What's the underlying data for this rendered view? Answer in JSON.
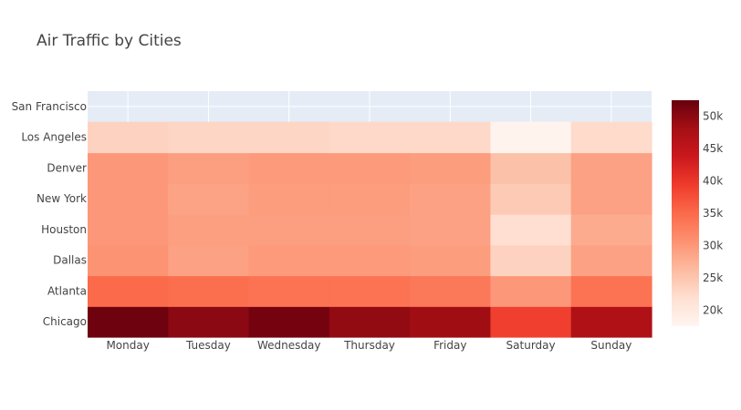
{
  "chart_data": {
    "type": "heatmap",
    "title": "Air Traffic by Cities",
    "x": [
      "Monday",
      "Tuesday",
      "Wednesday",
      "Thursday",
      "Friday",
      "Saturday",
      "Sunday"
    ],
    "y": [
      "Chicago",
      "Atlanta",
      "Dallas",
      "Houston",
      "New York",
      "Denver",
      "Los Angeles",
      "San Francisco"
    ],
    "z": [
      [
        52000,
        50000,
        51500,
        49500,
        48500,
        39000,
        47000
      ],
      [
        35000,
        34500,
        34000,
        34000,
        33500,
        30000,
        34000
      ],
      [
        30500,
        29000,
        29800,
        29800,
        29500,
        23500,
        29000
      ],
      [
        30000,
        29200,
        29300,
        29300,
        29000,
        22000,
        28000
      ],
      [
        30000,
        28800,
        29500,
        29500,
        29000,
        24500,
        29000
      ],
      [
        30000,
        29200,
        29800,
        29800,
        29500,
        25500,
        29000
      ],
      [
        23500,
        23000,
        23000,
        22800,
        22800,
        18000,
        22500
      ],
      [
        null,
        null,
        null,
        null,
        null,
        null,
        null
      ]
    ],
    "colorscale": "Reds",
    "zmin": 17500,
    "zmax": 52500,
    "colorbar_ticks": [
      20000,
      25000,
      30000,
      35000,
      40000,
      45000,
      50000
    ],
    "colorbar_tick_labels": [
      "20k",
      "25k",
      "30k",
      "35k",
      "40k",
      "45k",
      "50k"
    ],
    "colors": {
      "plot_background": "#e5ecf6",
      "text": "#444444",
      "gridline": "#ffffff"
    }
  }
}
